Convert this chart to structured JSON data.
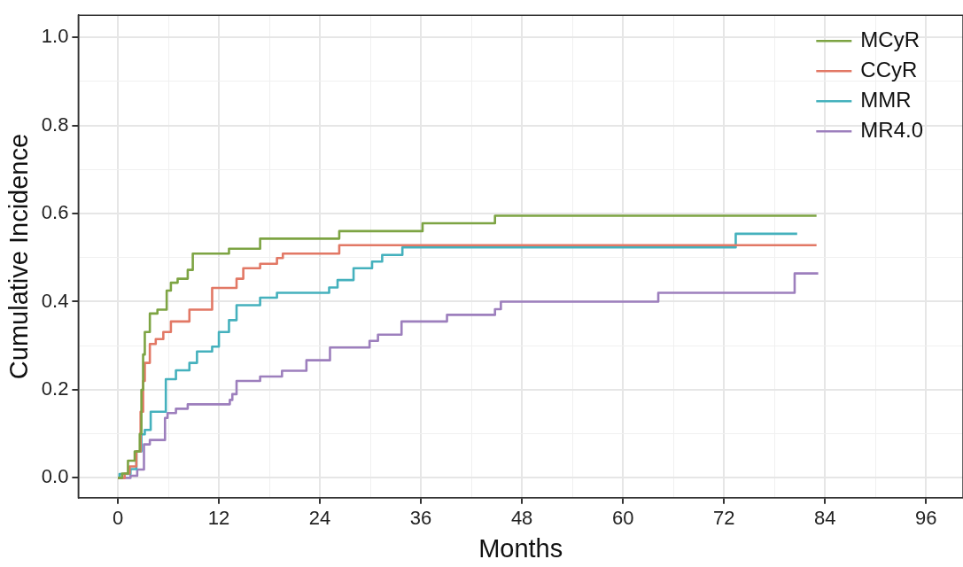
{
  "chart_data": {
    "type": "step",
    "xlabel": "Months",
    "ylabel": "Cumulative Incidence",
    "xlim": [
      -4.7,
      100.4
    ],
    "ylim": [
      -0.045,
      1.05
    ],
    "xticks": [
      0,
      {
        "value": 6,
        "label": null
      },
      12,
      {
        "value": 18,
        "label": null
      },
      24,
      {
        "value": 30,
        "label": null
      },
      36,
      {
        "value": 42,
        "label": null
      },
      48,
      {
        "value": 54,
        "label": null
      },
      60,
      {
        "value": 66,
        "label": null
      },
      72,
      {
        "value": 78,
        "label": null
      },
      84,
      {
        "value": 90,
        "label": null
      },
      96
    ],
    "yticks": [
      {
        "value": 0,
        "label": "0.0"
      },
      {
        "value": 0.1,
        "label": null
      },
      0.2,
      {
        "value": 0.3,
        "label": null
      },
      0.4,
      {
        "value": 0.5,
        "label": null
      },
      0.6,
      {
        "value": 0.7,
        "label": null
      },
      0.8,
      {
        "value": 0.9,
        "label": null
      },
      {
        "value": 1,
        "label": "1.0"
      }
    ],
    "grid": true,
    "legend": "top right",
    "line_style": "solid",
    "marker": "none",
    "series": [
      {
        "name": "MCyR",
        "color": "#7da443",
        "x": [
          0,
          0.5,
          1.2,
          2.0,
          2.6,
          2.8,
          3.0,
          3.2,
          3.8,
          4.7,
          5.8,
          6.3,
          7.1,
          8.3,
          8.9,
          13.2,
          16.9,
          26.3,
          36.2,
          44.8,
          83
        ],
        "values": [
          0,
          0.01,
          0.039,
          0.06,
          0.1,
          0.2,
          0.28,
          0.331,
          0.373,
          0.382,
          0.425,
          0.443,
          0.452,
          0.472,
          0.509,
          0.52,
          0.543,
          0.56,
          0.578,
          0.595,
          0.595
        ]
      },
      {
        "name": "CCyR",
        "color": "#e27865",
        "x": [
          0,
          0.8,
          1.4,
          2.2,
          2.7,
          3.0,
          3.2,
          3.8,
          4.5,
          5.4,
          6.3,
          8.5,
          11.2,
          14.1,
          14.9,
          16.9,
          18.9,
          19.6,
          26.3,
          83
        ],
        "values": [
          0,
          0.01,
          0.026,
          0.06,
          0.15,
          0.22,
          0.261,
          0.304,
          0.315,
          0.331,
          0.355,
          0.382,
          0.431,
          0.452,
          0.476,
          0.486,
          0.499,
          0.509,
          0.528,
          0.528
        ]
      },
      {
        "name": "MMR",
        "color": "#45b1bd",
        "x": [
          0,
          0.2,
          1.5,
          2.2,
          2.8,
          3.2,
          3.9,
          5.7,
          6.9,
          8.5,
          9.4,
          11.2,
          12.0,
          13.2,
          14.1,
          16.9,
          18.9,
          25.1,
          26.1,
          28.0,
          30.2,
          31.4,
          33.8,
          73.4,
          80.7
        ],
        "values": [
          0,
          0.009,
          0.02,
          0.06,
          0.099,
          0.109,
          0.15,
          0.224,
          0.244,
          0.261,
          0.287,
          0.298,
          0.331,
          0.358,
          0.392,
          0.409,
          0.42,
          0.432,
          0.449,
          0.476,
          0.491,
          0.506,
          0.523,
          0.554,
          0.554
        ]
      },
      {
        "name": "MR4.0",
        "color": "#9d7fbd",
        "x": [
          0,
          1.5,
          2.3,
          3.1,
          3.8,
          5.6,
          5.9,
          6.9,
          8.3,
          13.3,
          13.6,
          14.1,
          16.9,
          19.5,
          22.4,
          25.2,
          29.9,
          30.9,
          33.7,
          39.1,
          44.8,
          45.5,
          64.2,
          80.4,
          83.2
        ],
        "values": [
          0,
          0.005,
          0.019,
          0.076,
          0.086,
          0.136,
          0.147,
          0.157,
          0.167,
          0.177,
          0.19,
          0.22,
          0.23,
          0.243,
          0.267,
          0.296,
          0.311,
          0.325,
          0.355,
          0.37,
          0.383,
          0.4,
          0.42,
          0.464,
          0.464
        ]
      }
    ]
  }
}
